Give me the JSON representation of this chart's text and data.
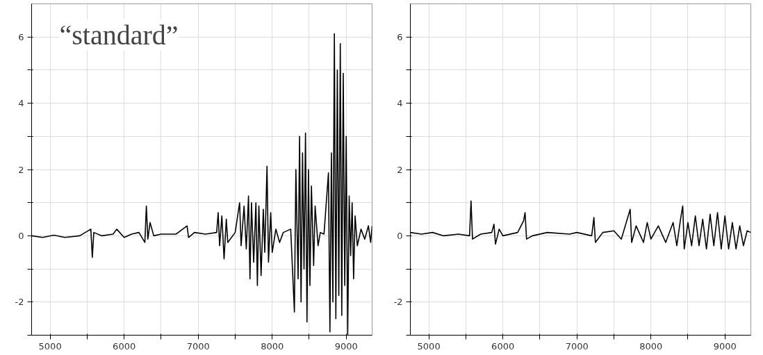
{
  "chart_data": [
    {
      "type": "line",
      "title": "“standard”",
      "grid": true,
      "xlim": [
        4750,
        9350
      ],
      "ylim": [
        -3,
        7
      ],
      "xticks": [
        5000,
        {
          "value": 5500,
          "label": null
        },
        6000,
        {
          "value": 6500,
          "label": null
        },
        7000,
        {
          "value": 7500,
          "label": null
        },
        8000,
        {
          "value": 8500,
          "label": null
        },
        9000
      ],
      "yticks": [
        {
          "value": -3,
          "label": null
        },
        -2,
        {
          "value": -1,
          "label": null
        },
        0,
        {
          "value": 1,
          "label": null
        },
        2,
        {
          "value": 3,
          "label": null
        },
        4,
        {
          "value": 5,
          "label": null
        },
        6
      ],
      "series": [
        {
          "color": "#000000",
          "x": [
            4750,
            4900,
            5050,
            5200,
            5400,
            5550,
            5570,
            5590,
            5700,
            5850,
            5900,
            6000,
            6100,
            6200,
            6280,
            6300,
            6320,
            6350,
            6400,
            6500,
            6700,
            6850,
            6870,
            6950,
            7100,
            7250,
            7270,
            7290,
            7320,
            7350,
            7380,
            7400,
            7500,
            7560,
            7580,
            7620,
            7650,
            7680,
            7700,
            7720,
            7750,
            7780,
            7800,
            7820,
            7850,
            7880,
            7900,
            7930,
            7950,
            7980,
            8000,
            8050,
            8100,
            8150,
            8250,
            8300,
            8320,
            8350,
            8370,
            8390,
            8410,
            8430,
            8450,
            8470,
            8490,
            8510,
            8530,
            8560,
            8580,
            8620,
            8650,
            8700,
            8760,
            8780,
            8800,
            8820,
            8840,
            8860,
            8880,
            8900,
            8920,
            8940,
            8960,
            8980,
            9000,
            9020,
            9040,
            9060,
            9080,
            9100,
            9120,
            9150,
            9200,
            9250,
            9300,
            9330,
            9350
          ],
          "values": [
            0,
            -0.05,
            0.02,
            -0.05,
            0,
            0.2,
            -0.65,
            0.1,
            0,
            0.05,
            0.2,
            -0.05,
            0.05,
            0.1,
            -0.2,
            0.9,
            -0.1,
            0.4,
            0,
            0.05,
            0.05,
            0.3,
            -0.05,
            0.1,
            0.05,
            0.1,
            0.7,
            -0.3,
            0.6,
            -0.7,
            0.5,
            -0.2,
            0.1,
            1.0,
            -0.3,
            0.9,
            -0.4,
            1.2,
            -1.3,
            1.0,
            -0.8,
            1.0,
            -1.5,
            0.9,
            -1.2,
            0.8,
            -0.5,
            2.1,
            -0.8,
            0.7,
            -0.5,
            0.2,
            -0.2,
            0.1,
            0.2,
            -2.3,
            2.0,
            -1.3,
            3.0,
            -2.0,
            2.5,
            -1.0,
            3.1,
            -2.6,
            2.0,
            -1.5,
            1.5,
            -0.9,
            0.9,
            -0.3,
            0.1,
            0.05,
            1.9,
            -2.9,
            2.5,
            -2.0,
            6.1,
            -2.5,
            5.0,
            -1.8,
            5.8,
            -2.4,
            4.9,
            -1.5,
            3.0,
            -3.0,
            1.2,
            -0.6,
            1.0,
            -1.3,
            0.6,
            -0.3,
            0.2,
            -0.1,
            0.3,
            -0.2,
            0.3
          ]
        }
      ]
    },
    {
      "type": "line",
      "grid": true,
      "xlim": [
        4750,
        9350
      ],
      "ylim": [
        -3,
        7
      ],
      "xticks": [
        5000,
        {
          "value": 5500,
          "label": null
        },
        6000,
        {
          "value": 6500,
          "label": null
        },
        7000,
        {
          "value": 7500,
          "label": null
        },
        8000,
        {
          "value": 8500,
          "label": null
        },
        9000
      ],
      "yticks": [
        {
          "value": -3,
          "label": null
        },
        -2,
        {
          "value": -1,
          "label": null
        },
        0,
        {
          "value": 1,
          "label": null
        },
        2,
        {
          "value": 3,
          "label": null
        },
        4,
        {
          "value": 5,
          "label": null
        },
        6
      ],
      "series": [
        {
          "color": "#000000",
          "x": [
            4750,
            4900,
            5050,
            5200,
            5400,
            5550,
            5570,
            5590,
            5700,
            5850,
            5880,
            5900,
            5950,
            6000,
            6200,
            6280,
            6300,
            6320,
            6400,
            6600,
            6900,
            7000,
            7200,
            7230,
            7250,
            7350,
            7500,
            7600,
            7720,
            7740,
            7800,
            7900,
            7950,
            8000,
            8100,
            8200,
            8300,
            8350,
            8400,
            8430,
            8450,
            8500,
            8550,
            8600,
            8650,
            8700,
            8750,
            8800,
            8850,
            8900,
            8950,
            9000,
            9050,
            9100,
            9150,
            9200,
            9250,
            9300,
            9350
          ],
          "values": [
            0.1,
            0.05,
            0.1,
            0,
            0.05,
            0,
            1.05,
            -0.1,
            0.05,
            0.1,
            0.35,
            -0.25,
            0.2,
            0,
            0.1,
            0.45,
            0.7,
            -0.1,
            0,
            0.1,
            0.05,
            0.1,
            0,
            0.55,
            -0.2,
            0.1,
            0.15,
            -0.1,
            0.8,
            -0.2,
            0.3,
            -0.2,
            0.4,
            -0.1,
            0.3,
            -0.2,
            0.4,
            -0.3,
            0.5,
            0.9,
            -0.4,
            0.4,
            -0.3,
            0.6,
            -0.3,
            0.5,
            -0.4,
            0.65,
            -0.3,
            0.7,
            -0.4,
            0.6,
            -0.4,
            0.4,
            -0.4,
            0.3,
            -0.3,
            0.15,
            0.1
          ]
        }
      ]
    }
  ]
}
